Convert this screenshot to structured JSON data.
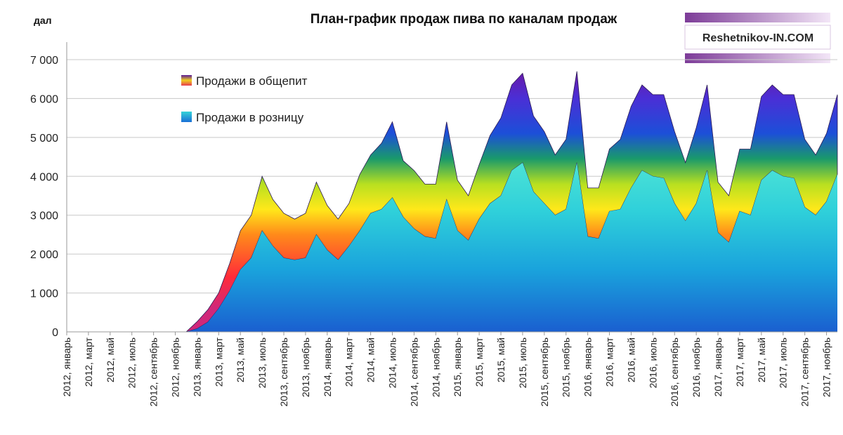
{
  "chart_data": {
    "type": "area",
    "stacked": true,
    "title": "План-график продаж пива по каналам продаж",
    "ylabel": "дал",
    "ylim": [
      0,
      7000
    ],
    "yticks": [
      0,
      1000,
      2000,
      3000,
      4000,
      5000,
      6000,
      7000
    ],
    "ytick_labels": [
      "0",
      "1 000",
      "2 000",
      "3 000",
      "4 000",
      "5 000",
      "6 000",
      "7 000"
    ],
    "grid": "horizontal",
    "legend_position": "top-left",
    "x": [
      "2012, январь",
      "2012, февраль",
      "2012, март",
      "2012, апрель",
      "2012, май",
      "2012, июнь",
      "2012, июль",
      "2012, август",
      "2012, сентябрь",
      "2012, октябрь",
      "2012, ноябрь",
      "2012, декабрь",
      "2013, январь",
      "2013, февраль",
      "2013, март",
      "2013, апрель",
      "2013, май",
      "2013, июнь",
      "2013, июль",
      "2013, август",
      "2013, сентябрь",
      "2013, октябрь",
      "2013, ноябрь",
      "2013, декабрь",
      "2014, январь",
      "2014, февраль",
      "2014, март",
      "2014, апрель",
      "2014, май",
      "2014, июнь",
      "2014, июль",
      "2014, август",
      "2014, сентябрь",
      "2014, октябрь",
      "2014, ноябрь",
      "2014, декабрь",
      "2015, январь",
      "2015, февраль",
      "2015, март",
      "2015, апрель",
      "2015, май",
      "2015, июнь",
      "2015, июль",
      "2015, август",
      "2015, сентябрь",
      "2015, октябрь",
      "2015, ноябрь",
      "2015, декабрь",
      "2016, январь",
      "2016, февраль",
      "2016, март",
      "2016, апрель",
      "2016, май",
      "2016, июнь",
      "2016, июль",
      "2016, август",
      "2016, сентябрь",
      "2016, октябрь",
      "2016, ноябрь",
      "2016, декабрь",
      "2017, январь",
      "2017, февраль",
      "2017, март",
      "2017, апрель",
      "2017, май",
      "2017, июнь",
      "2017, июль",
      "2017, август",
      "2017, сентябрь",
      "2017, октябрь",
      "2017, ноябрь",
      "2017, декабрь"
    ],
    "tick_labels": [
      "2012, январь",
      "2012, март",
      "2012, май",
      "2012, июль",
      "2012, сентябрь",
      "2012, ноябрь",
      "2013, январь",
      "2013, март",
      "2013, май",
      "2013, июль",
      "2013, сентябрь",
      "2013, ноябрь",
      "2014, январь",
      "2014, март",
      "2014, май",
      "2014, июль",
      "2014, сентябрь",
      "2014, ноябрь",
      "2015, январь",
      "2015, март",
      "2015, май",
      "2015, июль",
      "2015, сентябрь",
      "2015, ноябрь",
      "2016, январь",
      "2016, март",
      "2016, май",
      "2016, июль",
      "2016, сентябрь",
      "2016, ноябрь",
      "2017, январь",
      "2017, март",
      "2017, май",
      "2017, июль",
      "2017, сентябрь",
      "2017, ноябрь"
    ],
    "series": [
      {
        "name": "Продажи в розницу",
        "values": [
          0,
          0,
          0,
          0,
          0,
          0,
          0,
          0,
          0,
          0,
          0,
          0,
          80,
          250,
          600,
          1050,
          1600,
          1900,
          2600,
          2200,
          1900,
          1850,
          1900,
          2500,
          2100,
          1850,
          2200,
          2600,
          3050,
          3150,
          3450,
          2950,
          2650,
          2450,
          2400,
          3400,
          2600,
          2350,
          2900,
          3300,
          3500,
          4150,
          4350,
          3600,
          3300,
          3000,
          3150,
          4350,
          2450,
          2400,
          3100,
          3150,
          3700,
          4150,
          4000,
          3950,
          3300,
          2850,
          3300,
          4150,
          2550,
          2300,
          3100,
          3000,
          3900,
          4150,
          4000,
          3950,
          3200,
          3000,
          3350,
          4050
        ]
      },
      {
        "name": "Продажи в общепит",
        "values": [
          0,
          0,
          0,
          0,
          0,
          0,
          0,
          0,
          0,
          0,
          0,
          0,
          180,
          320,
          400,
          700,
          1000,
          1100,
          1400,
          1200,
          1150,
          1050,
          1150,
          1350,
          1150,
          1050,
          1100,
          1450,
          1500,
          1700,
          1950,
          1450,
          1500,
          1350,
          1400,
          2000,
          1300,
          1150,
          1400,
          1750,
          2000,
          2200,
          2300,
          1950,
          1850,
          1550,
          1800,
          2350,
          1250,
          1300,
          1600,
          1800,
          2100,
          2200,
          2100,
          2150,
          1850,
          1500,
          1950,
          2200,
          1300,
          1200,
          1600,
          1700,
          2150,
          2200,
          2100,
          2150,
          1750,
          1550,
          1750,
          2050
        ]
      }
    ]
  },
  "watermark": {
    "text": "Reshetnikov-IN.COM"
  }
}
